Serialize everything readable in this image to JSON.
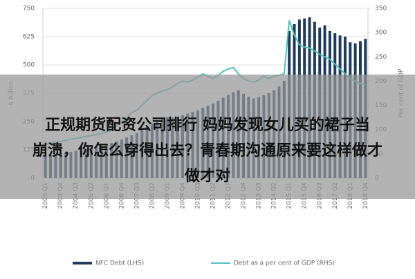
{
  "chart_data": {
    "type": "bar-line",
    "ylabel": "$ billion",
    "y2label": "Per cent of GDP",
    "categories": [
      "2003 Q1",
      null,
      null,
      "2003 Q4",
      null,
      null,
      "2004 Q3",
      null,
      null,
      "2005 Q2",
      null,
      null,
      "2006 Q1",
      null,
      null,
      "2006 Q4",
      null,
      null,
      "2007 Q3",
      null,
      null,
      "2008 Q2",
      null,
      null,
      "2009 Q1",
      null,
      null,
      "2009 Q4",
      null,
      null,
      "2010 Q3",
      null,
      null,
      "2011 Q2",
      null,
      null,
      "2012 Q1",
      null,
      null,
      "2012 Q4",
      null,
      null,
      "2013 Q3",
      null,
      null,
      "2014 Q2",
      null,
      null,
      "2015 Q1",
      null,
      null,
      "2015 Q4",
      null,
      null,
      "2016 Q3",
      null,
      null,
      "2017 Q2",
      null,
      null,
      "2018 Q1",
      null,
      null,
      "2018 Q4"
    ],
    "series": [
      {
        "name": "NFC Debt (LHS)",
        "type": "bar",
        "color": "#1f3a5c",
        "values": [
          100,
          103,
          106,
          110,
          113,
          116,
          120,
          124,
          128,
          132,
          137,
          142,
          148,
          155,
          162,
          170,
          180,
          190,
          200,
          212,
          225,
          240,
          255,
          265,
          270,
          268,
          272,
          278,
          285,
          292,
          300,
          310,
          320,
          330,
          342,
          355,
          368,
          380,
          388,
          372,
          360,
          352,
          358,
          366,
          375,
          388,
          405,
          430,
          650,
          680,
          700,
          705,
          710,
          690,
          665,
          675,
          650,
          640,
          630,
          625,
          600,
          595,
          605,
          615
        ]
      },
      {
        "name": "Debt as a per cent of GDP (RHS)",
        "type": "line",
        "axis": "y2",
        "color": "#4fc1c0",
        "values": [
          70,
          72,
          74,
          76,
          78,
          80,
          82,
          84,
          86,
          88,
          90,
          92,
          95,
          100,
          108,
          115,
          125,
          135,
          140,
          150,
          160,
          170,
          175,
          180,
          182,
          188,
          195,
          200,
          198,
          202,
          208,
          215,
          210,
          205,
          212,
          220,
          225,
          228,
          215,
          205,
          200,
          198,
          202,
          210,
          205,
          210,
          212,
          215,
          325,
          295,
          275,
          270,
          268,
          262,
          255,
          250,
          245,
          235,
          225,
          215,
          205,
          200,
          195,
          192
        ]
      }
    ],
    "ylim": [
      0,
      750
    ],
    "yticks": [
      0,
      125,
      250,
      375,
      500,
      625,
      750
    ],
    "y2lim": [
      0,
      350
    ],
    "y2ticks": [
      0,
      50,
      100,
      150,
      200,
      250,
      300,
      350
    ],
    "legend": "bottom"
  },
  "overlay": {
    "lines": [
      "正规期货配资公司排行 妈妈发现女儿买的裙子当",
      "崩溃，你怎么穿得出去？青春期沟通原来要这样做才",
      "做才对"
    ]
  }
}
